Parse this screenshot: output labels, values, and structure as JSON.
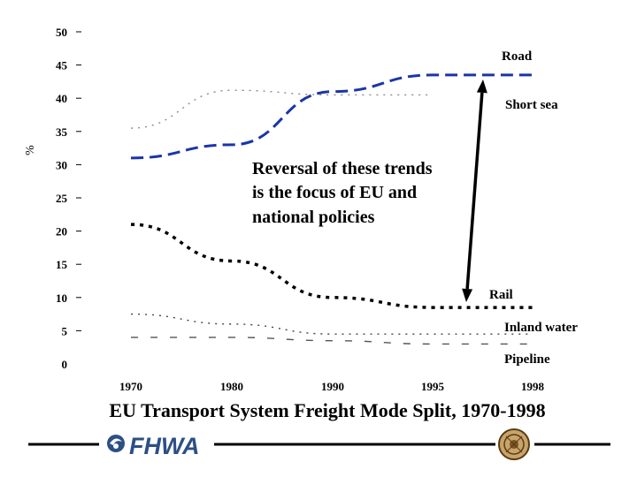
{
  "chart_data": {
    "type": "line",
    "title": "EU Transport System Freight Mode Split, 1970-1998",
    "ylabel": "%",
    "xlabel": "",
    "ylim": [
      0,
      50
    ],
    "yticks": [
      0,
      5,
      10,
      15,
      20,
      25,
      30,
      35,
      40,
      45,
      50
    ],
    "x": [
      1970,
      1980,
      1990,
      1995,
      1998
    ],
    "x_tick_labels": [
      "1970",
      "1980",
      "1990",
      "1995",
      "1998"
    ],
    "grid": false,
    "legend": "none (series labeled directly at right)",
    "series": [
      {
        "name": "Road",
        "color": "#1a35a8",
        "style": "dashed-thick",
        "values": [
          31,
          33,
          41,
          43.5,
          43.5
        ]
      },
      {
        "name": "Short sea",
        "color": "#8a8a8a",
        "style": "dotted",
        "values": [
          35.5,
          41.2,
          40.5,
          40.5,
          null
        ]
      },
      {
        "name": "Rail",
        "color": "#000000",
        "style": "dotted-thick",
        "values": [
          21,
          15.5,
          10,
          8.5,
          8.5
        ]
      },
      {
        "name": "Inland water",
        "color": "#444444",
        "style": "dotted",
        "values": [
          7.5,
          6,
          4.5,
          4.5,
          4.5
        ]
      },
      {
        "name": "Pipeline",
        "color": "#555555",
        "style": "dashed",
        "values": [
          4,
          4,
          3.5,
          3,
          3
        ]
      }
    ],
    "annotations": [
      {
        "text_lines": [
          "Reversal of these trends",
          "is the focus of EU and",
          "national policies"
        ]
      }
    ]
  },
  "footer": {
    "logo_text": "FHWA",
    "logo_icon": "fhwa-swirl-icon",
    "seal_icon": "dot-seal-icon",
    "line_color": "#000000",
    "brand_color": "#2c4f86"
  }
}
